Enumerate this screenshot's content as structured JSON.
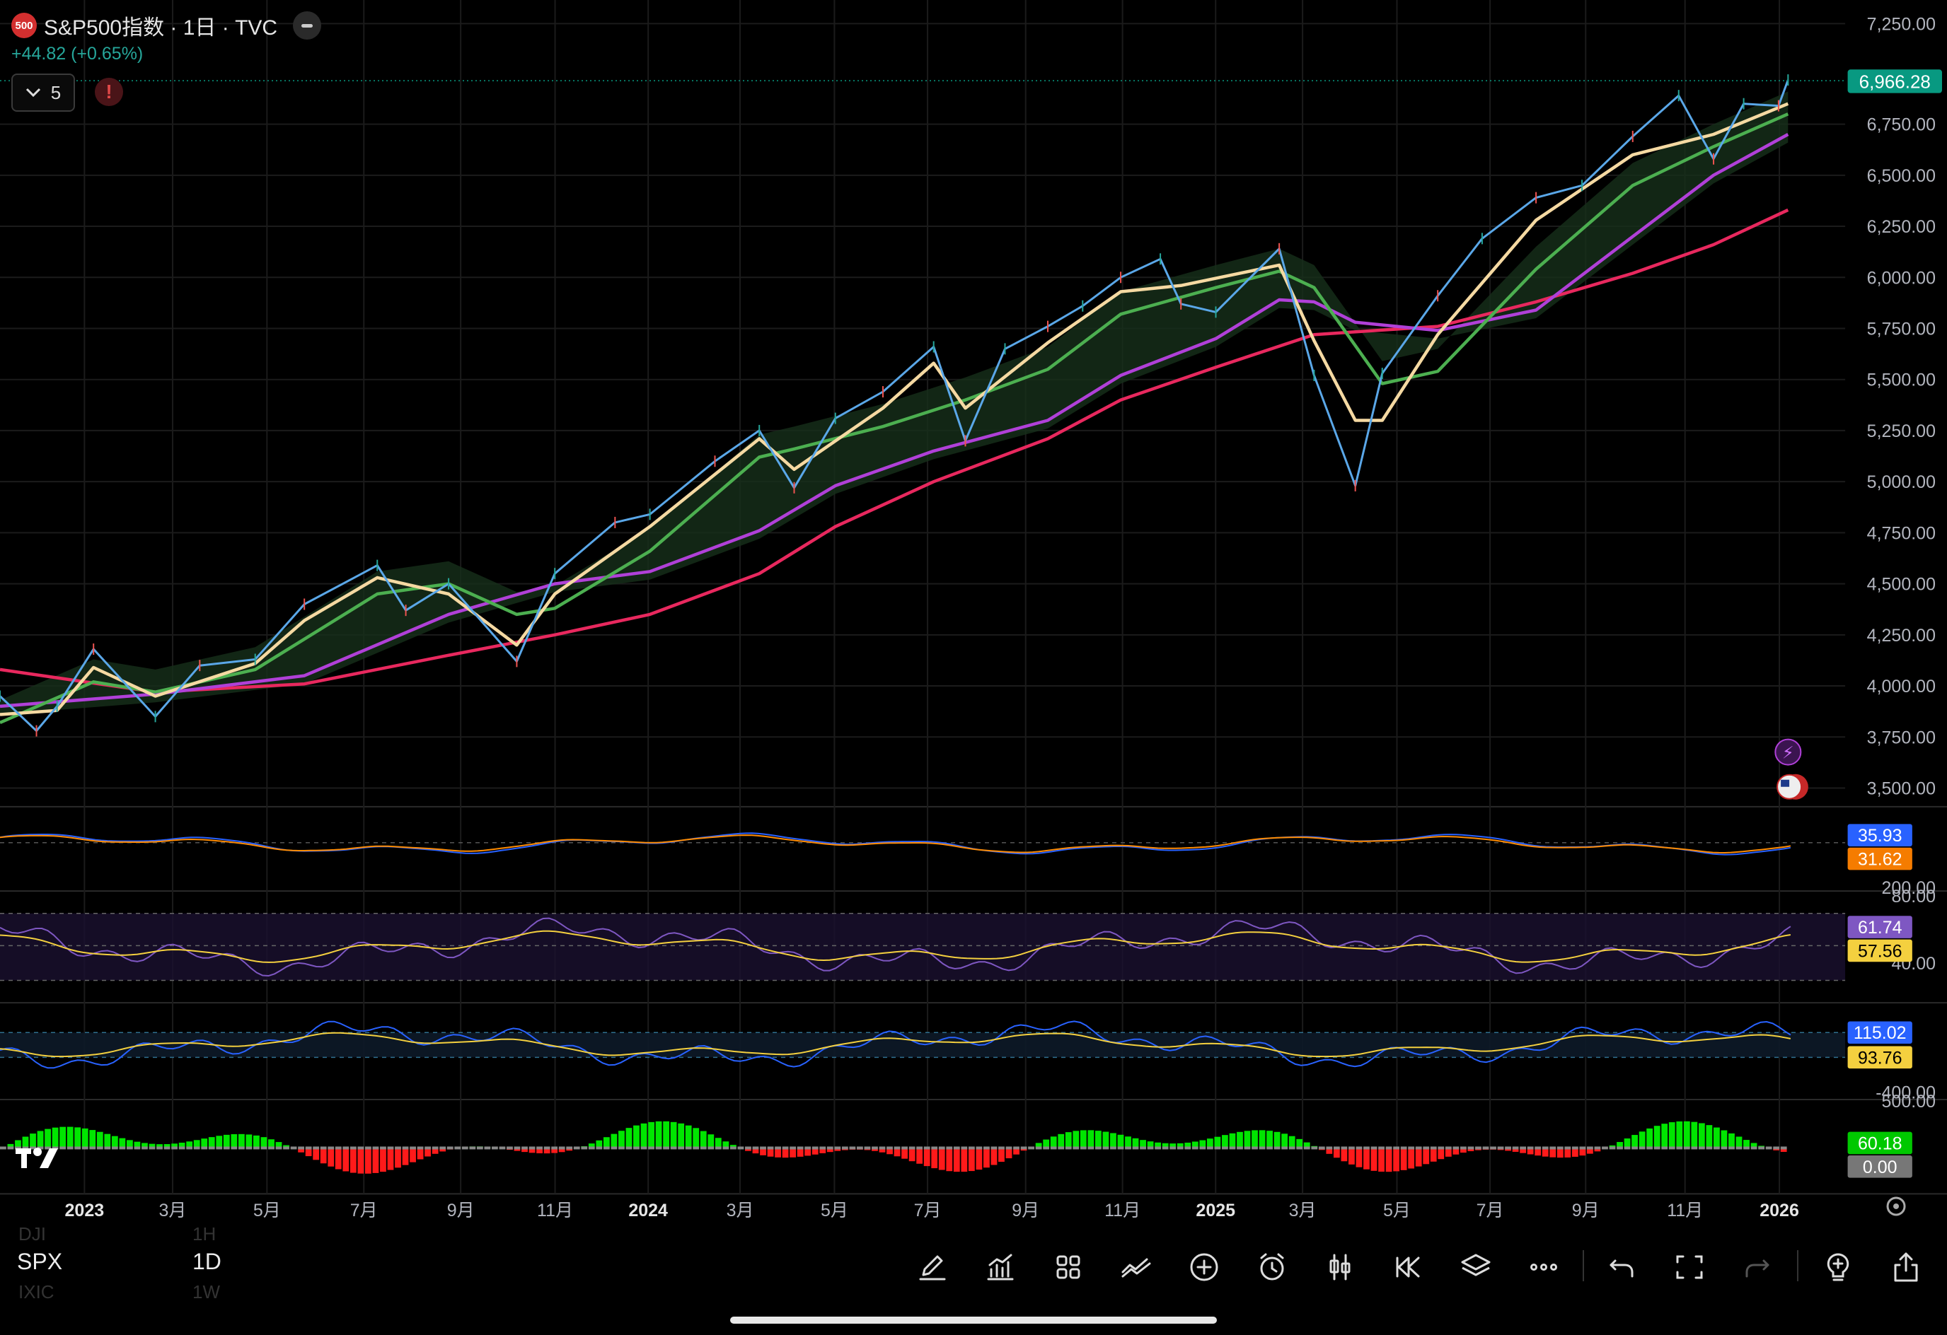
{
  "header": {
    "badge": "500",
    "title": "S&P500指数 · 1日 · TVC",
    "change": "+44.82 (+0.65%)",
    "indicator_count": "5",
    "warning": "!"
  },
  "colors": {
    "up": "#26a69a",
    "down": "#ef5350",
    "price_line": "#5aa7e8",
    "ma_yellow": "#f5d9a2",
    "ma_green": "#4caf50",
    "ma_purple": "#b040d8",
    "ma_red": "#e8285e",
    "last_price_bg": "#089981",
    "grid": "#1b1b1b",
    "text": "#b2b5be"
  },
  "symbol": {
    "ticker": "SPX",
    "interval": "1D",
    "ghost_above": "DJI",
    "ghost_above_interval": "1H",
    "ghost_below": "IXIC",
    "ghost_below_interval": "1W"
  },
  "toolbar": {
    "icons": [
      "pen-icon",
      "indicators-icon",
      "layout-grid-icon",
      "trendline-icon",
      "add-circle-icon",
      "alarm-icon",
      "candles-icon",
      "replay-icon",
      "layers-icon",
      "more-icon",
      "undo-icon",
      "fullscreen-icon",
      "redo-icon",
      "bulb-plus-icon",
      "share-icon"
    ]
  },
  "chart_data": [
    {
      "type": "line",
      "title": "S&P500指数 · 1日 · TVC",
      "x_ticks": [
        "2023",
        "3月",
        "5月",
        "7月",
        "9月",
        "11月",
        "2024",
        "3月",
        "5月",
        "7月",
        "9月",
        "11月",
        "2025",
        "3月",
        "5月",
        "7月",
        "9月",
        "11月",
        "2026"
      ],
      "x_ticks_bold": [
        "2023",
        "2024",
        "2025",
        "2026"
      ],
      "y_ticks": [
        "7,250.00",
        "6,750.00",
        "6,500.00",
        "6,250.00",
        "6,000.00",
        "5,750.00",
        "5,500.00",
        "5,250.00",
        "5,000.00",
        "4,750.00",
        "4,500.00",
        "4,250.00",
        "4,000.00",
        "3,750.00",
        "3,500.00"
      ],
      "ylim": [
        3450,
        7300
      ],
      "last_price": "6,966.28",
      "series": [
        {
          "color": "#5aa7e8",
          "x": [
            "2022-12-05",
            "2022-12-28",
            "2023-01-10",
            "2023-02-02",
            "2023-03-13",
            "2023-04-10",
            "2023-05-15",
            "2023-06-15",
            "2023-07-31",
            "2023-08-18",
            "2023-09-14",
            "2023-10-27",
            "2023-11-20",
            "2023-12-28",
            "2024-01-19",
            "2024-02-29",
            "2024-03-28",
            "2024-04-19",
            "2024-05-15",
            "2024-06-14",
            "2024-07-16",
            "2024-08-05",
            "2024-08-30",
            "2024-09-26",
            "2024-10-18",
            "2024-11-11",
            "2024-12-06",
            "2024-12-19",
            "2025-01-10",
            "2025-02-19",
            "2025-03-13",
            "2025-04-08",
            "2025-04-25",
            "2025-05-30",
            "2025-06-27",
            "2025-07-31",
            "2025-08-29",
            "2025-09-30",
            "2025-10-29",
            "2025-11-20",
            "2025-12-09",
            "2025-12-31",
            "2026-01-06"
          ],
          "values": [
            3950,
            3780,
            3900,
            4180,
            3850,
            4100,
            4130,
            4400,
            4590,
            4370,
            4500,
            4120,
            4550,
            4800,
            4840,
            5100,
            5250,
            4970,
            5310,
            5440,
            5660,
            5200,
            5650,
            5760,
            5860,
            6000,
            6090,
            5870,
            5830,
            6140,
            5520,
            4980,
            5530,
            5910,
            6190,
            6390,
            6450,
            6690,
            6890,
            6580,
            6850,
            6840,
            6966.28
          ]
        },
        {
          "color": "#f5d9a2",
          "x": [
            "2022-12-05",
            "2023-01-10",
            "2023-02-02",
            "2023-03-13",
            "2023-05-15",
            "2023-06-15",
            "2023-07-31",
            "2023-09-14",
            "2023-10-27",
            "2023-11-20",
            "2024-01-19",
            "2024-03-28",
            "2024-04-19",
            "2024-06-14",
            "2024-07-16",
            "2024-08-05",
            "2024-09-26",
            "2024-11-11",
            "2024-12-19",
            "2025-02-19",
            "2025-03-13",
            "2025-04-08",
            "2025-04-25",
            "2025-05-30",
            "2025-07-31",
            "2025-09-30",
            "2025-11-20",
            "2026-01-06"
          ],
          "values": [
            3860,
            3880,
            4090,
            3950,
            4110,
            4320,
            4530,
            4450,
            4200,
            4450,
            4780,
            5210,
            5060,
            5360,
            5580,
            5360,
            5680,
            5930,
            5960,
            6060,
            5690,
            5300,
            5300,
            5720,
            6280,
            6600,
            6700,
            6850
          ]
        },
        {
          "color": "#4caf50",
          "x": [
            "2022-12-05",
            "2023-02-02",
            "2023-03-13",
            "2023-05-15",
            "2023-07-31",
            "2023-09-14",
            "2023-10-27",
            "2023-11-20",
            "2024-01-19",
            "2024-03-28",
            "2024-04-19",
            "2024-06-14",
            "2024-08-05",
            "2024-09-26",
            "2024-11-11",
            "2025-01-10",
            "2025-02-19",
            "2025-03-13",
            "2025-04-25",
            "2025-05-30",
            "2025-07-31",
            "2025-09-30",
            "2025-11-20",
            "2026-01-06"
          ],
          "values": [
            3820,
            4020,
            3970,
            4080,
            4450,
            4500,
            4350,
            4380,
            4660,
            5120,
            5160,
            5270,
            5400,
            5550,
            5820,
            5950,
            6030,
            5950,
            5480,
            5540,
            6040,
            6450,
            6640,
            6800
          ]
        },
        {
          "color": "#b040d8",
          "x": [
            "2022-12-05",
            "2023-03-13",
            "2023-06-15",
            "2023-09-14",
            "2023-11-20",
            "2024-01-19",
            "2024-03-28",
            "2024-05-15",
            "2024-07-16",
            "2024-09-26",
            "2024-11-11",
            "2025-01-10",
            "2025-02-19",
            "2025-03-13",
            "2025-04-08",
            "2025-05-30",
            "2025-07-31",
            "2025-09-30",
            "2025-11-20",
            "2026-01-06"
          ],
          "values": [
            3900,
            3960,
            4050,
            4350,
            4500,
            4560,
            4760,
            4980,
            5150,
            5300,
            5520,
            5700,
            5890,
            5880,
            5780,
            5740,
            5840,
            6200,
            6500,
            6700
          ]
        },
        {
          "color": "#e8285e",
          "x": [
            "2022-12-05",
            "2023-03-13",
            "2023-06-15",
            "2023-09-14",
            "2023-11-20",
            "2024-01-19",
            "2024-03-28",
            "2024-05-15",
            "2024-07-16",
            "2024-09-26",
            "2024-11-11",
            "2025-01-10",
            "2025-03-13",
            "2025-05-30",
            "2025-07-31",
            "2025-09-30",
            "2025-11-20",
            "2026-01-06"
          ],
          "values": [
            4080,
            3970,
            4010,
            4150,
            4250,
            4350,
            4550,
            4780,
            5000,
            5210,
            5400,
            5560,
            5720,
            5760,
            5880,
            6020,
            6160,
            6330
          ]
        }
      ]
    },
    {
      "type": "line",
      "y_ticks": [
        "200.00"
      ],
      "last_values": [
        "35.93",
        "31.62"
      ],
      "series": [
        {
          "color": "#2962ff"
        },
        {
          "color": "#ff8c00"
        }
      ]
    },
    {
      "type": "line",
      "y_ticks": [
        "80.00",
        "40.00"
      ],
      "last_values": [
        "61.74",
        "57.56"
      ],
      "series": [
        {
          "color": "#7e57c2"
        },
        {
          "color": "#f4d03f"
        }
      ]
    },
    {
      "type": "line",
      "y_ticks": [
        "-400.00"
      ],
      "last_values": [
        "115.02",
        "93.76"
      ],
      "series": [
        {
          "color": "#2962ff"
        },
        {
          "color": "#f4d03f"
        }
      ]
    },
    {
      "type": "bar",
      "y_ticks": [
        "500.00"
      ],
      "last_values": [
        "60.18",
        "0.00"
      ],
      "series": [
        {
          "color": "#00e600"
        },
        {
          "color": "#ff1a1a"
        },
        {
          "color": "#888888"
        }
      ]
    }
  ]
}
